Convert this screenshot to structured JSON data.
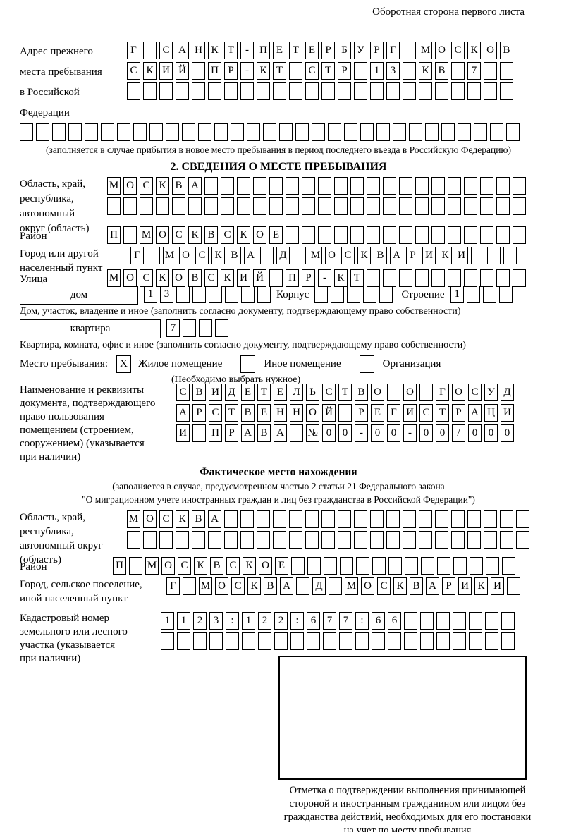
{
  "page": {
    "header_note": "Оборотная сторона первого листа"
  },
  "prev_address": {
    "label": [
      "Адрес прежнего",
      "места пребывания",
      "в Российской",
      "Федерации"
    ],
    "rows": [
      {
        "text": "Г САНКТ-ПЕТЕРБУРГ МОСКОВ",
        "len": 24
      },
      {
        "text": "СКИЙ ПР-КТ СТР 13 КВ 7",
        "len": 24
      },
      {
        "text": "",
        "len": 24
      }
    ],
    "overflow_row": {
      "text": "",
      "len": 31
    },
    "note": "(заполняется в случае прибытия в новое место пребывания в период последнего въезда в Российскую Федерацию)"
  },
  "section2": {
    "title": "2. СВЕДЕНИЯ О МЕСТЕ ПРЕБЫВАНИЯ",
    "region": {
      "label": [
        "Область, край,",
        "республика,",
        "автономный",
        "округ (область)"
      ],
      "rows": [
        {
          "text": "МОСКВА",
          "len": 26
        },
        {
          "text": "",
          "len": 26
        }
      ]
    },
    "district": {
      "label": "Район",
      "row": {
        "text": "П МОСКВСКОЕ",
        "len": 26
      }
    },
    "city": {
      "label": [
        "Город или другой",
        "населенный пункт"
      ],
      "row": {
        "text": "Г МОСКВА Д МОСКВАРИКИ",
        "len": 24
      }
    },
    "street": {
      "label": "Улица",
      "row": {
        "text": "МОСКОВСКИЙ ПР-КТ",
        "len": 26
      }
    },
    "house": {
      "box_label": "дом",
      "cells": {
        "text": "13",
        "len": 8
      },
      "korpus_label": "Корпус",
      "korpus_cells": {
        "text": "",
        "len": 5
      },
      "stroenie_label": "Строение",
      "stroenie_cells": {
        "text": "1",
        "len": 4
      },
      "caption": "Дом, участок, владение и иное (заполнить согласно документу, подтверждающему право собственности)"
    },
    "apartment": {
      "box_label": "квартира",
      "cells": {
        "text": "7",
        "len": 4
      },
      "caption": "Квартира, комната, офис и иное (заполнить согласно документу, подтверждающему право собственности)"
    },
    "stay_type": {
      "label": "Место пребывания:",
      "options": [
        {
          "label": "Жилое помещение",
          "checked": "X"
        },
        {
          "label": "Иное помещение",
          "checked": ""
        },
        {
          "label": "Организация",
          "checked": ""
        }
      ],
      "note": "(Необходимо выбрать нужное)"
    },
    "document": {
      "label": [
        "Наименование и реквизиты",
        "документа, подтверждающего",
        "право пользования",
        "помещением (строением,",
        "сооружением) (указывается",
        "при наличии)"
      ],
      "rows": [
        {
          "text": "СВИДЕТЕЛЬСТВО О ГОСУД",
          "len": 21
        },
        {
          "text": "АРСТВЕННОЙ РЕГИСТРАЦИ",
          "len": 21
        },
        {
          "text": "И ПРАВА №00-00-00/000",
          "len": 21
        }
      ]
    }
  },
  "actual_location": {
    "title": "Фактическое место нахождения",
    "note": [
      "(заполняется в случае, предусмотренном частью 2 статьи 21 Федерального закона",
      "\"О миграционном учете иностранных граждан и лиц без гражданства в Российской Федерации\")"
    ],
    "region": {
      "label": [
        "Область, край,",
        "республика,",
        "автономный округ",
        "(область)"
      ],
      "rows": [
        {
          "text": "МОСКВА",
          "len": 25
        },
        {
          "text": "",
          "len": 25
        }
      ]
    },
    "district": {
      "label": "Район",
      "row": {
        "text": "П МОСКВСКОЕ",
        "len": 25
      }
    },
    "city": {
      "label": [
        "Город, сельское поселение,",
        "иной населенный пункт"
      ],
      "row": {
        "text": "Г МОСКВА Д МОСКВАРИКИ",
        "len": 22
      }
    },
    "cadastre": {
      "label": [
        "Кадастровый номер",
        "земельного или лесного",
        "участка (указывается",
        "при наличии)"
      ],
      "rows": [
        {
          "text": "1123:122:677:66",
          "len": 22
        },
        {
          "text": "",
          "len": 22
        }
      ]
    },
    "stamp_caption": [
      "Отметка о подтверждении выполнения принимающей",
      "стороной и иностранным гражданином или лицом без",
      "гражданства действий, необходимых для его постановки",
      "на учет по месту пребывания"
    ]
  }
}
